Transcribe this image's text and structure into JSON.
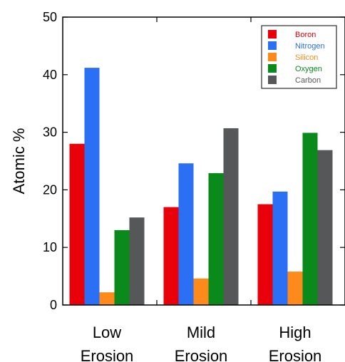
{
  "chart_data": {
    "type": "bar",
    "title": "",
    "xlabel": "",
    "ylabel": "Atomic %",
    "ylim": [
      0,
      50
    ],
    "yticks": [
      0,
      10,
      20,
      30,
      40,
      50
    ],
    "categories": [
      [
        "Low",
        "Erosion"
      ],
      [
        "Mild",
        "Erosion"
      ],
      [
        "High",
        "Erosion"
      ]
    ],
    "series": [
      {
        "name": "Boron",
        "color": "#e8000b",
        "values": [
          28,
          17,
          17.5
        ]
      },
      {
        "name": "Nitrogen",
        "color": "#2b6ff5",
        "values": [
          41.2,
          24.6,
          19.7
        ]
      },
      {
        "name": "Silicon",
        "color": "#ff8a1c",
        "values": [
          2.2,
          4.6,
          5.8
        ]
      },
      {
        "name": "Oxygen",
        "color": "#0a8a1a",
        "values": [
          13,
          22.9,
          29.9
        ]
      },
      {
        "name": "Carbon",
        "color": "#555758",
        "values": [
          15.2,
          30.7,
          26.9
        ]
      }
    ],
    "legend_position": "top-right",
    "grid": false
  }
}
